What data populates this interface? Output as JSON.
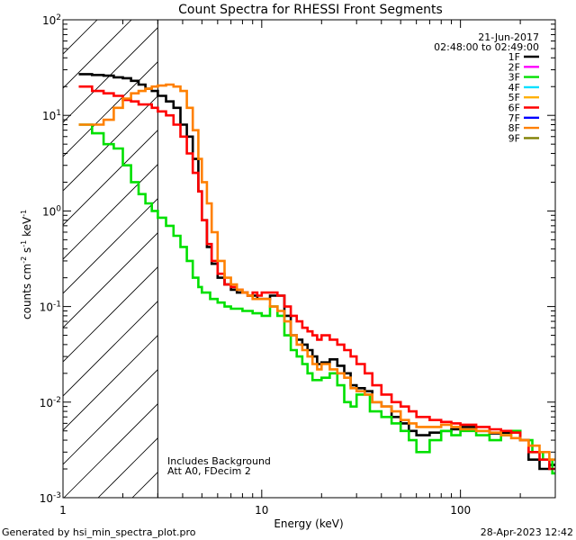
{
  "chart_data": {
    "type": "line",
    "title": "Count Spectra for RHESSI Front Segments",
    "xlabel": "Energy (keV)",
    "ylabel_parts": [
      "counts cm",
      "-2",
      " s",
      "-1",
      " keV",
      "-1"
    ],
    "xscale": "log",
    "yscale": "log",
    "xlim": [
      1,
      300
    ],
    "ylim": [
      0.001,
      100
    ],
    "x_tick_labels": [
      {
        "value": 1,
        "label": "1"
      },
      {
        "value": 10,
        "label": "10"
      },
      {
        "value": 100,
        "label": "100"
      }
    ],
    "y_tick_labels": [
      {
        "value": 0.001,
        "base": "10",
        "exp": "-3"
      },
      {
        "value": 0.01,
        "base": "10",
        "exp": "-2"
      },
      {
        "value": 0.1,
        "base": "10",
        "exp": "-1"
      },
      {
        "value": 1,
        "base": "10",
        "exp": "0"
      },
      {
        "value": 10,
        "base": "10",
        "exp": "1"
      },
      {
        "value": 100,
        "base": "10",
        "exp": "2"
      }
    ],
    "date": "21-Jun-2017",
    "time_range": "02:48:00 to 02:49:00",
    "annotations": [
      "Includes Background",
      "Att A0, FDecim 2"
    ],
    "shaded_region": {
      "from": 1,
      "to": 3,
      "style": "hatched"
    },
    "legend": [
      {
        "name": "1F",
        "color": "#000000"
      },
      {
        "name": "2F",
        "color": "#ff00ff"
      },
      {
        "name": "3F",
        "color": "#00e000"
      },
      {
        "name": "4F",
        "color": "#00e0ff"
      },
      {
        "name": "5F",
        "color": "#ffb000"
      },
      {
        "name": "6F",
        "color": "#ff0000"
      },
      {
        "name": "7F",
        "color": "#0000ff"
      },
      {
        "name": "8F",
        "color": "#ff8000"
      },
      {
        "name": "9F",
        "color": "#808000"
      }
    ],
    "series": [
      {
        "name": "1F",
        "color": "#000000",
        "points": [
          [
            1.2,
            27
          ],
          [
            1.4,
            26.5
          ],
          [
            1.6,
            26
          ],
          [
            1.8,
            25
          ],
          [
            2.0,
            24.5
          ],
          [
            2.2,
            23
          ],
          [
            2.4,
            21
          ],
          [
            2.6,
            19
          ],
          [
            2.8,
            18
          ],
          [
            3.0,
            16
          ],
          [
            3.3,
            14
          ],
          [
            3.6,
            12
          ],
          [
            3.9,
            8
          ],
          [
            4.2,
            6
          ],
          [
            4.5,
            3.5
          ],
          [
            4.8,
            1.6
          ],
          [
            5.0,
            0.8
          ],
          [
            5.3,
            0.42
          ],
          [
            5.6,
            0.28
          ],
          [
            6.0,
            0.2
          ],
          [
            6.5,
            0.17
          ],
          [
            7.0,
            0.15
          ],
          [
            7.5,
            0.14
          ],
          [
            8.0,
            0.14
          ],
          [
            8.5,
            0.13
          ],
          [
            9.0,
            0.13
          ],
          [
            9.5,
            0.12
          ],
          [
            10,
            0.12
          ],
          [
            11,
            0.13
          ],
          [
            12,
            0.13
          ],
          [
            13,
            0.08
          ],
          [
            14,
            0.05
          ],
          [
            15,
            0.045
          ],
          [
            16,
            0.04
          ],
          [
            17,
            0.035
          ],
          [
            18,
            0.03
          ],
          [
            19,
            0.025
          ],
          [
            20,
            0.026
          ],
          [
            22,
            0.028
          ],
          [
            24,
            0.024
          ],
          [
            26,
            0.02
          ],
          [
            28,
            0.015
          ],
          [
            30,
            0.014
          ],
          [
            33,
            0.013
          ],
          [
            36,
            0.01
          ],
          [
            40,
            0.009
          ],
          [
            45,
            0.007
          ],
          [
            50,
            0.006
          ],
          [
            55,
            0.005
          ],
          [
            60,
            0.0045
          ],
          [
            70,
            0.0048
          ],
          [
            80,
            0.005
          ],
          [
            90,
            0.0052
          ],
          [
            100,
            0.0055
          ],
          [
            120,
            0.005
          ],
          [
            140,
            0.0047
          ],
          [
            160,
            0.0048
          ],
          [
            180,
            0.005
          ],
          [
            200,
            0.004
          ],
          [
            220,
            0.0025
          ],
          [
            250,
            0.002
          ],
          [
            280,
            0.0022
          ]
        ]
      },
      {
        "name": "3F",
        "color": "#00e000",
        "points": [
          [
            1.2,
            8
          ],
          [
            1.4,
            6.5
          ],
          [
            1.6,
            5
          ],
          [
            1.8,
            4.5
          ],
          [
            2.0,
            3
          ],
          [
            2.2,
            2
          ],
          [
            2.4,
            1.5
          ],
          [
            2.6,
            1.2
          ],
          [
            2.8,
            1.0
          ],
          [
            3.0,
            0.85
          ],
          [
            3.3,
            0.7
          ],
          [
            3.6,
            0.55
          ],
          [
            3.9,
            0.42
          ],
          [
            4.2,
            0.3
          ],
          [
            4.5,
            0.2
          ],
          [
            4.8,
            0.16
          ],
          [
            5.0,
            0.14
          ],
          [
            5.5,
            0.12
          ],
          [
            6.0,
            0.11
          ],
          [
            6.5,
            0.1
          ],
          [
            7.0,
            0.095
          ],
          [
            8.0,
            0.09
          ],
          [
            9.0,
            0.085
          ],
          [
            10,
            0.08
          ],
          [
            11,
            0.1
          ],
          [
            12,
            0.08
          ],
          [
            13,
            0.05
          ],
          [
            14,
            0.035
          ],
          [
            15,
            0.03
          ],
          [
            16,
            0.025
          ],
          [
            17,
            0.02
          ],
          [
            18,
            0.017
          ],
          [
            20,
            0.018
          ],
          [
            22,
            0.02
          ],
          [
            24,
            0.015
          ],
          [
            26,
            0.01
          ],
          [
            28,
            0.009
          ],
          [
            30,
            0.012
          ],
          [
            35,
            0.008
          ],
          [
            40,
            0.007
          ],
          [
            45,
            0.006
          ],
          [
            50,
            0.005
          ],
          [
            55,
            0.004
          ],
          [
            60,
            0.003
          ],
          [
            70,
            0.004
          ],
          [
            80,
            0.005
          ],
          [
            90,
            0.0045
          ],
          [
            100,
            0.005
          ],
          [
            120,
            0.0045
          ],
          [
            140,
            0.004
          ],
          [
            160,
            0.0045
          ],
          [
            180,
            0.005
          ],
          [
            200,
            0.004
          ],
          [
            230,
            0.003
          ],
          [
            260,
            0.0025
          ],
          [
            290,
            0.0018
          ]
        ]
      },
      {
        "name": "6F",
        "color": "#ff0000",
        "points": [
          [
            1.2,
            20
          ],
          [
            1.4,
            18
          ],
          [
            1.6,
            17
          ],
          [
            1.8,
            16
          ],
          [
            2.0,
            14.5
          ],
          [
            2.2,
            14
          ],
          [
            2.4,
            13
          ],
          [
            2.6,
            13
          ],
          [
            2.8,
            12
          ],
          [
            3.0,
            11
          ],
          [
            3.3,
            10
          ],
          [
            3.6,
            8
          ],
          [
            3.9,
            6
          ],
          [
            4.2,
            4
          ],
          [
            4.5,
            2.5
          ],
          [
            4.8,
            1.6
          ],
          [
            5.0,
            0.8
          ],
          [
            5.3,
            0.45
          ],
          [
            5.6,
            0.3
          ],
          [
            6.0,
            0.22
          ],
          [
            6.5,
            0.17
          ],
          [
            7.0,
            0.16
          ],
          [
            7.5,
            0.15
          ],
          [
            8.0,
            0.14
          ],
          [
            8.5,
            0.13
          ],
          [
            9.0,
            0.14
          ],
          [
            9.5,
            0.13
          ],
          [
            10,
            0.14
          ],
          [
            11,
            0.14
          ],
          [
            12,
            0.13
          ],
          [
            13,
            0.1
          ],
          [
            14,
            0.08
          ],
          [
            15,
            0.07
          ],
          [
            16,
            0.06
          ],
          [
            17,
            0.055
          ],
          [
            18,
            0.05
          ],
          [
            19,
            0.045
          ],
          [
            20,
            0.05
          ],
          [
            22,
            0.045
          ],
          [
            24,
            0.04
          ],
          [
            26,
            0.035
          ],
          [
            28,
            0.03
          ],
          [
            30,
            0.025
          ],
          [
            33,
            0.02
          ],
          [
            36,
            0.015
          ],
          [
            40,
            0.012
          ],
          [
            45,
            0.01
          ],
          [
            50,
            0.009
          ],
          [
            55,
            0.008
          ],
          [
            60,
            0.007
          ],
          [
            70,
            0.0065
          ],
          [
            80,
            0.0062
          ],
          [
            90,
            0.006
          ],
          [
            100,
            0.0058
          ],
          [
            120,
            0.0055
          ],
          [
            140,
            0.0052
          ],
          [
            160,
            0.005
          ],
          [
            180,
            0.0048
          ],
          [
            200,
            0.004
          ],
          [
            220,
            0.003
          ],
          [
            250,
            0.0025
          ],
          [
            280,
            0.002
          ]
        ]
      },
      {
        "name": "8F",
        "color": "#ff8000",
        "points": [
          [
            1.2,
            8
          ],
          [
            1.4,
            8
          ],
          [
            1.6,
            9
          ],
          [
            1.8,
            12
          ],
          [
            2.0,
            15
          ],
          [
            2.2,
            17
          ],
          [
            2.4,
            18
          ],
          [
            2.6,
            19
          ],
          [
            2.8,
            20
          ],
          [
            3.0,
            20.5
          ],
          [
            3.3,
            21
          ],
          [
            3.6,
            20
          ],
          [
            3.9,
            18
          ],
          [
            4.2,
            12
          ],
          [
            4.5,
            7
          ],
          [
            4.8,
            3.5
          ],
          [
            5.0,
            2
          ],
          [
            5.3,
            1.2
          ],
          [
            5.6,
            0.6
          ],
          [
            6.0,
            0.3
          ],
          [
            6.5,
            0.2
          ],
          [
            7.0,
            0.17
          ],
          [
            7.5,
            0.15
          ],
          [
            8.0,
            0.14
          ],
          [
            8.5,
            0.13
          ],
          [
            9.0,
            0.12
          ],
          [
            9.5,
            0.12
          ],
          [
            10,
            0.12
          ],
          [
            11,
            0.1
          ],
          [
            12,
            0.09
          ],
          [
            13,
            0.07
          ],
          [
            14,
            0.05
          ],
          [
            15,
            0.04
          ],
          [
            16,
            0.035
          ],
          [
            17,
            0.03
          ],
          [
            18,
            0.025
          ],
          [
            19,
            0.022
          ],
          [
            20,
            0.025
          ],
          [
            22,
            0.022
          ],
          [
            24,
            0.02
          ],
          [
            26,
            0.018
          ],
          [
            28,
            0.014
          ],
          [
            30,
            0.013
          ],
          [
            33,
            0.012
          ],
          [
            36,
            0.01
          ],
          [
            40,
            0.009
          ],
          [
            45,
            0.008
          ],
          [
            50,
            0.0065
          ],
          [
            55,
            0.006
          ],
          [
            60,
            0.0055
          ],
          [
            70,
            0.0055
          ],
          [
            80,
            0.0058
          ],
          [
            90,
            0.0055
          ],
          [
            100,
            0.0052
          ],
          [
            120,
            0.005
          ],
          [
            140,
            0.0048
          ],
          [
            160,
            0.0045
          ],
          [
            180,
            0.0042
          ],
          [
            200,
            0.004
          ],
          [
            220,
            0.0035
          ],
          [
            250,
            0.003
          ],
          [
            280,
            0.0025
          ]
        ]
      }
    ]
  },
  "footer": {
    "generated": "Generated by hsi_min_spectra_plot.pro",
    "timestamp": "28-Apr-2023 12:42"
  }
}
